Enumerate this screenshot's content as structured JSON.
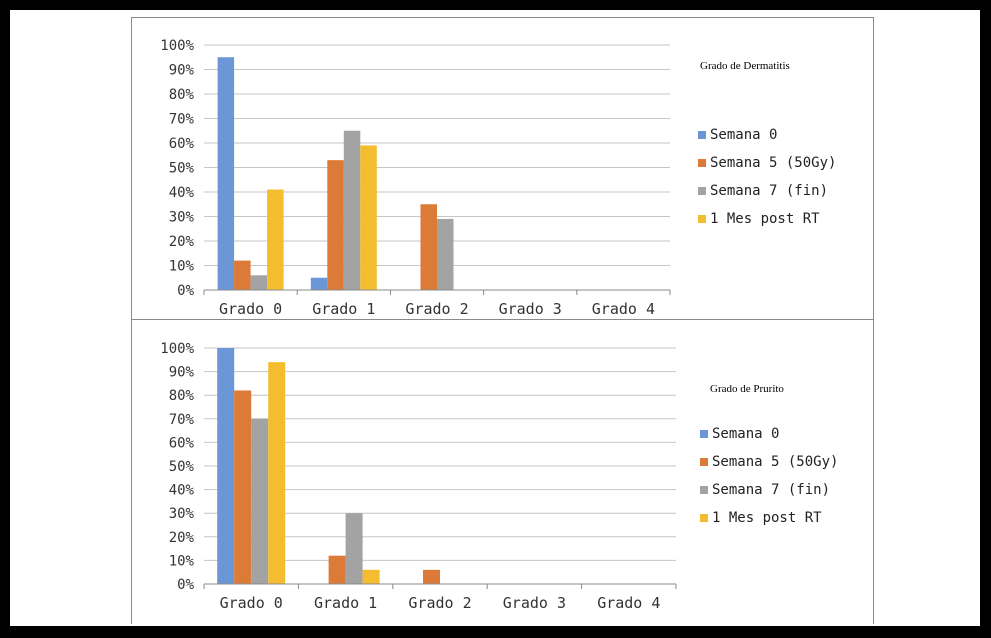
{
  "colors": {
    "series": [
      "#6c97d6",
      "#dc7a38",
      "#a3a3a3",
      "#f4bd30"
    ],
    "grid": "#c6c6c6",
    "axis": "#8a8a8a"
  },
  "chart_data": [
    {
      "type": "bar",
      "title": "Grado de Dermatitis",
      "categories": [
        "Grado 0",
        "Grado 1",
        "Grado 2",
        "Grado 3",
        "Grado 4"
      ],
      "ylim": [
        0,
        100
      ],
      "yticks": [
        "0%",
        "10%",
        "20%",
        "30%",
        "40%",
        "50%",
        "60%",
        "70%",
        "80%",
        "90%",
        "100%"
      ],
      "grid": true,
      "legend_position": "right",
      "series": [
        {
          "name": "Semana 0",
          "values": [
            95,
            5,
            0,
            0,
            0
          ]
        },
        {
          "name": "Semana 5 (50Gy)",
          "values": [
            12,
            53,
            35,
            0,
            0
          ]
        },
        {
          "name": "Semana 7 (fin)",
          "values": [
            6,
            65,
            29,
            0,
            0
          ]
        },
        {
          "name": "1 Mes post RT",
          "values": [
            41,
            59,
            0,
            0,
            0
          ]
        }
      ]
    },
    {
      "type": "bar",
      "title": "Grado de Prurito",
      "categories": [
        "Grado 0",
        "Grado 1",
        "Grado 2",
        "Grado 3",
        "Grado 4"
      ],
      "ylim": [
        0,
        100
      ],
      "yticks": [
        "0%",
        "10%",
        "20%",
        "30%",
        "40%",
        "50%",
        "60%",
        "70%",
        "80%",
        "90%",
        "100%"
      ],
      "grid": true,
      "legend_position": "right",
      "series": [
        {
          "name": "Semana 0",
          "values": [
            100,
            0,
            0,
            0,
            0
          ]
        },
        {
          "name": "Semana 5 (50Gy)",
          "values": [
            82,
            12,
            6,
            0,
            0
          ]
        },
        {
          "name": "Semana 7 (fin)",
          "values": [
            70,
            30,
            0,
            0,
            0
          ]
        },
        {
          "name": "1 Mes post RT",
          "values": [
            94,
            6,
            0,
            0,
            0
          ]
        }
      ]
    }
  ]
}
